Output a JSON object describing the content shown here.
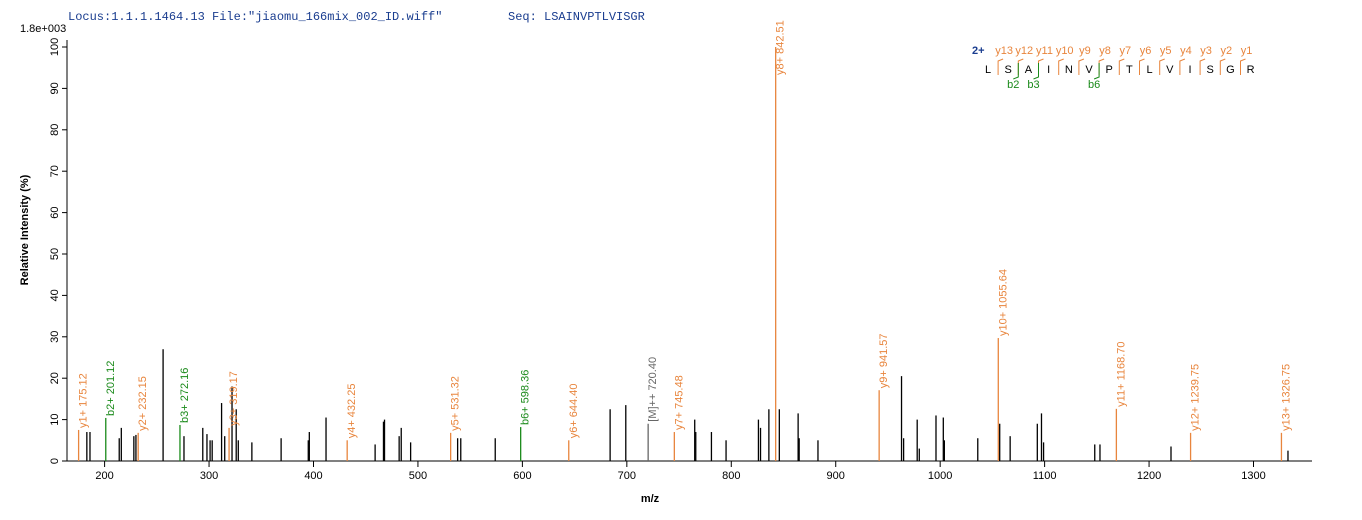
{
  "chart_data": {
    "type": "spectrum",
    "locus": "Locus:1.1.1.1464.13 File:\"jiaomu_166mix_002_ID.wiff\"",
    "sequence": "Seq: LSAINVPTLVISGR",
    "scale_label": "1.8e+003",
    "xlabel": "m/z",
    "ylabel": "Relative Intensity (%)",
    "xlim": [
      164,
      1356
    ],
    "ylim": [
      0,
      100
    ],
    "xticks": [
      200,
      300,
      400,
      500,
      600,
      700,
      800,
      900,
      1000,
      1100,
      1200,
      1300
    ],
    "yticks": [
      0,
      10,
      20,
      30,
      40,
      50,
      60,
      70,
      80,
      90,
      100
    ],
    "color": "#000000",
    "peaks": {
      "mz": [
        183,
        186,
        214,
        216,
        228,
        230,
        256,
        276,
        294,
        298,
        301,
        303,
        312,
        315,
        322,
        326,
        328,
        341,
        369,
        395,
        396,
        412,
        459,
        467,
        468,
        482,
        484,
        493,
        538,
        541,
        574,
        684,
        699,
        765,
        766,
        781,
        795,
        826,
        828,
        836,
        846,
        864,
        865,
        883,
        963,
        965,
        978,
        980,
        996,
        1003,
        1004,
        1036,
        1057,
        1067,
        1093,
        1097,
        1099,
        1148,
        1153,
        1221,
        1333
      ],
      "intensity": [
        7,
        7,
        5.5,
        8,
        6,
        6.3,
        27,
        6,
        8,
        6.5,
        5,
        5,
        14,
        6,
        18,
        12.5,
        5,
        4.5,
        5.5,
        5,
        7,
        10.5,
        4,
        9.5,
        10,
        6,
        8,
        4.5,
        5.5,
        5.5,
        5.5,
        12.5,
        13.5,
        10,
        7,
        7,
        5,
        10,
        8,
        12.5,
        12.5,
        11.5,
        5.5,
        5,
        20.5,
        5.5,
        10,
        3,
        11,
        10.5,
        5,
        5.5,
        9,
        6,
        9,
        11.5,
        4.5,
        4,
        4,
        3.5,
        2.5
      ]
    },
    "annotations": [
      {
        "label": "y1+ 175.12",
        "mz": 175.12,
        "intensity": 7.5,
        "color": "#e8853d"
      },
      {
        "label": "b2+ 201.12",
        "mz": 201.12,
        "intensity": 10.4,
        "color": "#1a8a1a"
      },
      {
        "label": "y2+ 232.15",
        "mz": 232.15,
        "intensity": 6.8,
        "color": "#e8853d"
      },
      {
        "label": "b3+ 272.16",
        "mz": 272.16,
        "intensity": 8.7,
        "color": "#1a8a1a"
      },
      {
        "label": "y3+ 319.17",
        "mz": 319.17,
        "intensity": 8,
        "color": "#e8853d"
      },
      {
        "label": "y4+ 432.25",
        "mz": 432.25,
        "intensity": 5,
        "color": "#e8853d"
      },
      {
        "label": "y5+ 531.32",
        "mz": 531.32,
        "intensity": 6.8,
        "color": "#e8853d"
      },
      {
        "label": "b6+ 598.36",
        "mz": 598.36,
        "intensity": 8.2,
        "color": "#1a8a1a"
      },
      {
        "label": "y6+ 644.40",
        "mz": 644.4,
        "intensity": 5,
        "color": "#e8853d"
      },
      {
        "label": "[M]++ 720.40",
        "mz": 720.4,
        "intensity": 9,
        "color": "#666666"
      },
      {
        "label": "y7+ 745.48",
        "mz": 745.48,
        "intensity": 7,
        "color": "#e8853d"
      },
      {
        "label": "y8+ 842.51",
        "mz": 842.51,
        "intensity": 100,
        "color": "#e8853d"
      },
      {
        "label": "y9+ 941.57",
        "mz": 941.57,
        "intensity": 17.1,
        "color": "#e8853d"
      },
      {
        "label": "y10+ 1055.64",
        "mz": 1055.64,
        "intensity": 29.7,
        "color": "#e8853d"
      },
      {
        "label": "y11+ 1168.70",
        "mz": 1168.7,
        "intensity": 12.6,
        "color": "#e8853d"
      },
      {
        "label": "y12+ 1239.75",
        "mz": 1239.75,
        "intensity": 6.8,
        "color": "#e8853d"
      },
      {
        "label": "y13+ 1326.75",
        "mz": 1326.75,
        "intensity": 6.8,
        "color": "#e8853d"
      }
    ],
    "fragment_map": {
      "charge": "2+",
      "residues": [
        "L",
        "S",
        "A",
        "I",
        "N",
        "V",
        "P",
        "T",
        "L",
        "V",
        "I",
        "S",
        "G",
        "R"
      ],
      "y_ions": [
        "y13",
        "y12",
        "y11",
        "y10",
        "y9",
        "y8",
        "y7",
        "y6",
        "y5",
        "y4",
        "y3",
        "y2",
        "y1"
      ],
      "b_ions": [
        {
          "label": "b2",
          "after": 2
        },
        {
          "label": "b3",
          "after": 3
        },
        {
          "label": "b6",
          "after": 6
        }
      ]
    }
  }
}
